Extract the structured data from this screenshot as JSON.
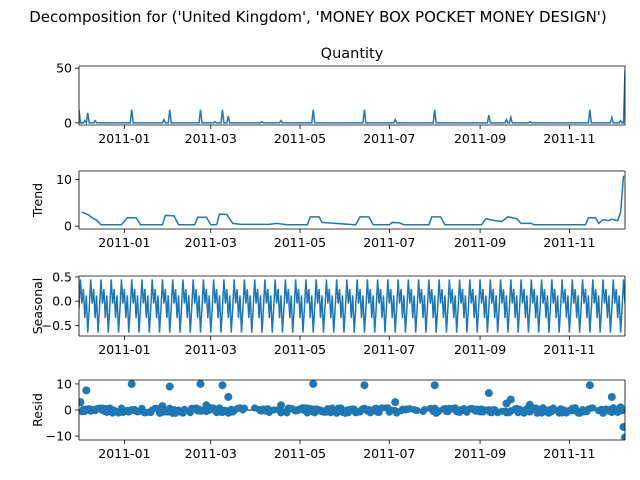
{
  "figure": {
    "suptitle": "Decomposition for ('United Kingdom', 'MONEY BOX POCKET MONEY DESIGN')"
  },
  "chart_data": [
    {
      "type": "line",
      "title": "Quantity",
      "ylabel": "",
      "ylim": [
        -2,
        52
      ],
      "yticks": [
        0,
        50
      ],
      "xlim": [
        "2010-12-01",
        "2011-12-09"
      ],
      "xticks": [
        "2011-01",
        "2011-03",
        "2011-05",
        "2011-07",
        "2011-09",
        "2011-11"
      ],
      "baseline": 0,
      "spikes": [
        {
          "x": "2010-12-01",
          "y": 12
        },
        {
          "x": "2010-12-05",
          "y": 2
        },
        {
          "x": "2010-12-07",
          "y": 9
        },
        {
          "x": "2010-12-12",
          "y": 2
        },
        {
          "x": "2011-01-06",
          "y": 12
        },
        {
          "x": "2011-01-28",
          "y": 3
        },
        {
          "x": "2011-02-01",
          "y": 12
        },
        {
          "x": "2011-02-22",
          "y": 12
        },
        {
          "x": "2011-03-04",
          "y": 1
        },
        {
          "x": "2011-03-09",
          "y": 12
        },
        {
          "x": "2011-03-13",
          "y": 6
        },
        {
          "x": "2011-04-05",
          "y": 1
        },
        {
          "x": "2011-04-18",
          "y": 2
        },
        {
          "x": "2011-05-10",
          "y": 12
        },
        {
          "x": "2011-06-14",
          "y": 12
        },
        {
          "x": "2011-07-05",
          "y": 3
        },
        {
          "x": "2011-08-01",
          "y": 12
        },
        {
          "x": "2011-09-07",
          "y": 7
        },
        {
          "x": "2011-09-19",
          "y": 3
        },
        {
          "x": "2011-09-22",
          "y": 5
        },
        {
          "x": "2011-10-05",
          "y": 1
        },
        {
          "x": "2011-11-15",
          "y": 12
        },
        {
          "x": "2011-11-30",
          "y": 5
        },
        {
          "x": "2011-12-06",
          "y": 2
        },
        {
          "x": "2011-12-09",
          "y": 48
        }
      ]
    },
    {
      "type": "line",
      "title": "",
      "ylabel": "Trend",
      "ylim": [
        -0.6,
        11.8
      ],
      "yticks": [
        0,
        10
      ],
      "xlim": [
        "2010-12-01",
        "2011-12-09"
      ],
      "xticks": [
        "2011-01",
        "2011-03",
        "2011-05",
        "2011-07",
        "2011-09",
        "2011-11"
      ],
      "points": [
        {
          "x": "2010-12-03",
          "y": 3.0
        },
        {
          "x": "2010-12-07",
          "y": 2.5
        },
        {
          "x": "2010-12-10",
          "y": 1.8
        },
        {
          "x": "2010-12-13",
          "y": 1.3
        },
        {
          "x": "2010-12-16",
          "y": 0.3
        },
        {
          "x": "2010-12-30",
          "y": 0.3
        },
        {
          "x": "2011-01-03",
          "y": 1.8
        },
        {
          "x": "2011-01-09",
          "y": 1.8
        },
        {
          "x": "2011-01-12",
          "y": 0.3
        },
        {
          "x": "2011-01-27",
          "y": 0.3
        },
        {
          "x": "2011-01-29",
          "y": 2.3
        },
        {
          "x": "2011-02-04",
          "y": 2.2
        },
        {
          "x": "2011-02-07",
          "y": 0.3
        },
        {
          "x": "2011-02-18",
          "y": 0.3
        },
        {
          "x": "2011-02-20",
          "y": 1.9
        },
        {
          "x": "2011-02-26",
          "y": 1.9
        },
        {
          "x": "2011-03-01",
          "y": 0.3
        },
        {
          "x": "2011-03-05",
          "y": 0.3
        },
        {
          "x": "2011-03-07",
          "y": 2.6
        },
        {
          "x": "2011-03-12",
          "y": 2.5
        },
        {
          "x": "2011-03-16",
          "y": 0.6
        },
        {
          "x": "2011-03-22",
          "y": 0.4
        },
        {
          "x": "2011-04-10",
          "y": 0.4
        },
        {
          "x": "2011-04-15",
          "y": 0.6
        },
        {
          "x": "2011-04-22",
          "y": 0.3
        },
        {
          "x": "2011-05-06",
          "y": 0.3
        },
        {
          "x": "2011-05-08",
          "y": 2.0
        },
        {
          "x": "2011-05-14",
          "y": 2.0
        },
        {
          "x": "2011-05-16",
          "y": 0.8
        },
        {
          "x": "2011-05-25",
          "y": 0.6
        },
        {
          "x": "2011-06-08",
          "y": 0.3
        },
        {
          "x": "2011-06-11",
          "y": 2.0
        },
        {
          "x": "2011-06-17",
          "y": 2.0
        },
        {
          "x": "2011-06-20",
          "y": 0.3
        },
        {
          "x": "2011-07-01",
          "y": 0.3
        },
        {
          "x": "2011-07-03",
          "y": 0.8
        },
        {
          "x": "2011-07-08",
          "y": 0.7
        },
        {
          "x": "2011-07-11",
          "y": 0.3
        },
        {
          "x": "2011-07-28",
          "y": 0.3
        },
        {
          "x": "2011-07-30",
          "y": 2.0
        },
        {
          "x": "2011-08-05",
          "y": 2.0
        },
        {
          "x": "2011-08-08",
          "y": 0.3
        },
        {
          "x": "2011-09-02",
          "y": 0.3
        },
        {
          "x": "2011-09-05",
          "y": 1.6
        },
        {
          "x": "2011-09-11",
          "y": 1.2
        },
        {
          "x": "2011-09-16",
          "y": 1.0
        },
        {
          "x": "2011-09-20",
          "y": 2.0
        },
        {
          "x": "2011-09-26",
          "y": 1.6
        },
        {
          "x": "2011-09-29",
          "y": 0.6
        },
        {
          "x": "2011-10-06",
          "y": 0.6
        },
        {
          "x": "2011-10-08",
          "y": 0.3
        },
        {
          "x": "2011-11-12",
          "y": 0.3
        },
        {
          "x": "2011-11-14",
          "y": 1.8
        },
        {
          "x": "2011-11-19",
          "y": 1.8
        },
        {
          "x": "2011-11-21",
          "y": 0.6
        },
        {
          "x": "2011-11-24",
          "y": 1.4
        },
        {
          "x": "2011-11-28",
          "y": 1.2
        },
        {
          "x": "2011-11-30",
          "y": 1.5
        },
        {
          "x": "2011-12-04",
          "y": 1.2
        },
        {
          "x": "2011-12-06",
          "y": 3.0
        },
        {
          "x": "2011-12-08",
          "y": 10.8
        }
      ]
    },
    {
      "type": "line",
      "title": "",
      "ylabel": "Seasonal",
      "ylim": [
        -0.72,
        0.52
      ],
      "yticks": [
        0.5,
        0.0,
        -0.5
      ],
      "ytick_labels": [
        "0.5",
        "0.0",
        "−0.5"
      ],
      "xlim": [
        "2010-12-01",
        "2011-12-09"
      ],
      "xticks": [
        "2011-01",
        "2011-03",
        "2011-05",
        "2011-07",
        "2011-09",
        "2011-11"
      ],
      "start": "2010-12-01",
      "period_pattern": [
        -0.15,
        0.45,
        -0.05,
        0.25,
        -0.35,
        0.12,
        -0.65
      ]
    },
    {
      "type": "scatter",
      "title": "",
      "ylabel": "Resid",
      "ylim": [
        -11.5,
        11.5
      ],
      "yticks": [
        10,
        0,
        -10
      ],
      "ytick_labels": [
        "10",
        "0",
        "−10"
      ],
      "baseline": 0,
      "xlim": [
        "2010-12-01",
        "2011-12-09"
      ],
      "xticks": [
        "2011-01",
        "2011-03",
        "2011-05",
        "2011-07",
        "2011-09",
        "2011-11"
      ],
      "outliers": [
        {
          "x": "2010-12-02",
          "y": 3
        },
        {
          "x": "2010-12-06",
          "y": 7.5
        },
        {
          "x": "2011-01-06",
          "y": 10
        },
        {
          "x": "2011-02-01",
          "y": 9
        },
        {
          "x": "2011-01-27",
          "y": 1.5
        },
        {
          "x": "2011-02-22",
          "y": 10
        },
        {
          "x": "2011-02-26",
          "y": 1.8
        },
        {
          "x": "2011-03-09",
          "y": 9.5
        },
        {
          "x": "2011-03-13",
          "y": 5
        },
        {
          "x": "2011-04-18",
          "y": 1.8
        },
        {
          "x": "2011-05-10",
          "y": 10
        },
        {
          "x": "2011-06-14",
          "y": 9.5
        },
        {
          "x": "2011-07-05",
          "y": 3
        },
        {
          "x": "2011-08-01",
          "y": 9.5
        },
        {
          "x": "2011-09-07",
          "y": 6.5
        },
        {
          "x": "2011-09-19",
          "y": 2.5
        },
        {
          "x": "2011-09-22",
          "y": 4
        },
        {
          "x": "2011-10-05",
          "y": 2
        },
        {
          "x": "2011-11-15",
          "y": 9.5
        },
        {
          "x": "2011-11-30",
          "y": 5
        },
        {
          "x": "2011-12-06",
          "y": 1
        },
        {
          "x": "2011-12-08",
          "y": -6.5
        },
        {
          "x": "2011-12-09",
          "y": -10.5
        }
      ]
    }
  ]
}
